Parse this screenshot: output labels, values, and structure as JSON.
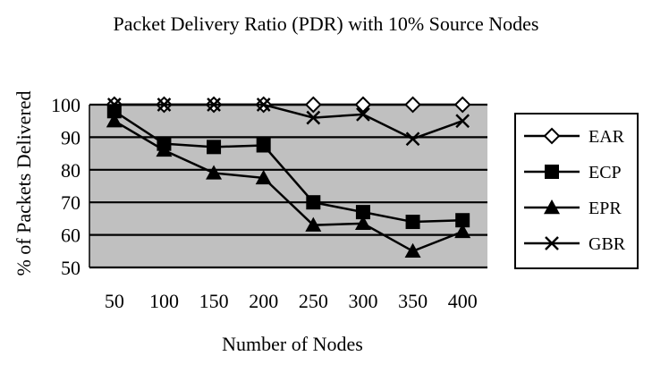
{
  "chart_data": {
    "type": "line",
    "title": "Packet Delivery Ratio (PDR) with 10% Source Nodes",
    "xlabel": "Number of Nodes",
    "ylabel": "% of Packets  Delivered",
    "categories": [
      "50",
      "100",
      "150",
      "200",
      "250",
      "300",
      "350",
      "400"
    ],
    "ylim": [
      50,
      100
    ],
    "yticks": [
      50,
      60,
      70,
      80,
      90,
      100
    ],
    "grid": true,
    "legend_position": "right",
    "plot_background": "#c0c0c0",
    "series": [
      {
        "name": "EAR",
        "marker": "diamond-open",
        "values": [
          100,
          100,
          100,
          100,
          100,
          100,
          100,
          100
        ]
      },
      {
        "name": "ECP",
        "marker": "square-filled",
        "values": [
          98,
          88,
          87,
          87.5,
          70,
          67,
          64,
          64.5
        ]
      },
      {
        "name": "EPR",
        "marker": "triangle-filled",
        "values": [
          95,
          86,
          79,
          77.5,
          63,
          63.5,
          55,
          61
        ]
      },
      {
        "name": "GBR",
        "marker": "x",
        "values": [
          100,
          100,
          100,
          100,
          96,
          97,
          89.5,
          95
        ]
      }
    ]
  }
}
